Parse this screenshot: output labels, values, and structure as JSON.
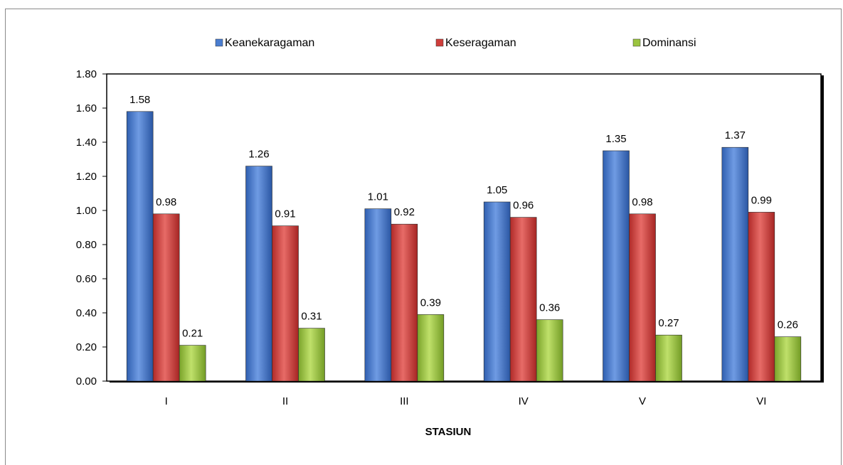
{
  "chart_data": {
    "type": "bar",
    "title": "",
    "xlabel": "STASIUN",
    "ylabel": "",
    "ylim": [
      0,
      1.8
    ],
    "y_ticks": [
      "0.00",
      "0.20",
      "0.40",
      "0.60",
      "0.80",
      "1.00",
      "1.20",
      "1.40",
      "1.60",
      "1.80"
    ],
    "grid": false,
    "legend_position": "top",
    "categories": [
      "I",
      "II",
      "III",
      "IV",
      "V",
      "VI"
    ],
    "series": [
      {
        "name": "Keanekaragaman",
        "color": "#4a7dd0",
        "values": [
          1.58,
          1.26,
          1.01,
          1.05,
          1.35,
          1.37
        ],
        "labels": [
          "1.58",
          "1.26",
          "1.01",
          "1.05",
          "1.35",
          "1.37"
        ]
      },
      {
        "name": "Keseragaman",
        "color": "#cf3e3b",
        "values": [
          0.98,
          0.91,
          0.92,
          0.96,
          0.98,
          0.99
        ],
        "labels": [
          "0.98",
          "0.91",
          "0.92",
          "0.96",
          "0.98",
          "0.99"
        ]
      },
      {
        "name": "Dominansi",
        "color": "#9bc43f",
        "values": [
          0.21,
          0.31,
          0.39,
          0.36,
          0.27,
          0.26
        ],
        "labels": [
          "0.21",
          "0.31",
          "0.39",
          "0.36",
          "0.27",
          "0.26"
        ]
      }
    ]
  }
}
